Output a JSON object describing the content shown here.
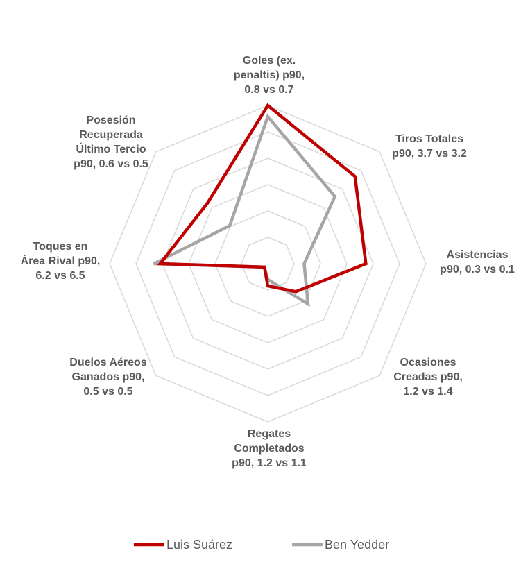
{
  "chart_data": {
    "type": "radar",
    "title": "",
    "categories": [
      "Goles (ex. penaltis) p90, 0.8 vs 0.7",
      "Tiros Totales p90, 3.7 vs 3.2",
      "Asistencias p90, 0.3 vs 0.1",
      "Ocasiones Creadas p90, 1.2 vs 1.4",
      "Regates Completados p90, 1.2 vs 1.1",
      "Duelos Aéreos Ganados p90, 0.5 vs 0.5",
      "Toques en Área Rival p90, 6.2 vs 6.5",
      "Posesión Recuperada Último Tercio p90, 0.6 vs 0.5"
    ],
    "category_lines": [
      [
        "Goles (ex.",
        "penaltis) p90,",
        "0.8 vs 0.7"
      ],
      [
        "Tiros Totales",
        "p90, 3.7 vs 3.2"
      ],
      [
        "Asistencias",
        "p90, 0.3 vs 0.1"
      ],
      [
        "Ocasiones",
        "Creadas p90,",
        "1.2 vs 1.4"
      ],
      [
        "Regates",
        "Completados",
        "p90, 1.2 vs 1.1"
      ],
      [
        "Duelos Aéreos",
        "Ganados p90,",
        "0.5 vs 0.5"
      ],
      [
        "Toques en",
        "Área Rival p90,",
        "6.2 vs 6.5"
      ],
      [
        "Posesión",
        "Recuperada",
        "Último Tercio",
        "p90, 0.6 vs 0.5"
      ]
    ],
    "series": [
      {
        "name": "Luis Suárez",
        "color": "#c00000",
        "values": [
          1.0,
          0.78,
          0.62,
          0.25,
          0.14,
          0.03,
          0.68,
          0.54
        ]
      },
      {
        "name": "Ben Yedder",
        "color": "#a6a6a6",
        "values": [
          0.93,
          0.6,
          0.23,
          0.36,
          0.1,
          0.03,
          0.72,
          0.34
        ]
      }
    ],
    "scale": {
      "min": 0,
      "max": 1,
      "rings": 6
    },
    "grid": true,
    "legend_position": "bottom",
    "grid_color": "#d9d9d9",
    "label_color": "#595959"
  }
}
